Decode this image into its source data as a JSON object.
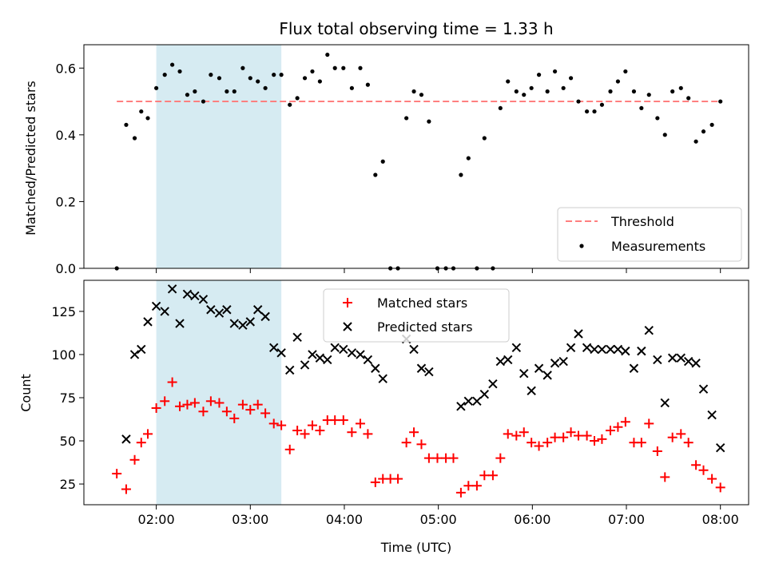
{
  "chart_data": {
    "type": "scatter",
    "title": "Flux total observing time = 1.33 h",
    "xlabel": "Time (UTC)",
    "x_tick_labels": [
      "02:00",
      "03:00",
      "04:00",
      "05:00",
      "06:00",
      "07:00",
      "08:00"
    ],
    "x_ticks_hours": [
      2,
      3,
      4,
      5,
      6,
      7,
      8
    ],
    "xlim_hours": [
      1.23,
      8.3
    ],
    "highlight_span_hours": [
      2.0,
      3.33
    ],
    "highlight_color": "#add8e6",
    "panels": [
      {
        "ylabel": "Matched/Predicted stars",
        "ylim": [
          0,
          0.67
        ],
        "y_ticks": [
          0.0,
          0.2,
          0.4,
          0.6
        ],
        "y_tick_labels": [
          "0.0",
          "0.2",
          "0.4",
          "0.6"
        ],
        "threshold": 0.5,
        "legend": [
          "Threshold",
          "Measurements"
        ],
        "legend_position": "lower-right",
        "threshold_color": "#ff7f7f",
        "series": [
          {
            "name": "Measurements",
            "color": "#000000",
            "x": [
              1.58,
              1.68,
              1.77,
              1.84,
              1.91,
              2.0,
              2.09,
              2.17,
              2.25,
              2.33,
              2.41,
              2.5,
              2.58,
              2.67,
              2.75,
              2.83,
              2.92,
              3.0,
              3.08,
              3.16,
              3.25,
              3.33,
              3.42,
              3.5,
              3.58,
              3.66,
              3.74,
              3.82,
              3.9,
              3.99,
              4.08,
              4.17,
              4.25,
              4.33,
              4.41,
              4.49,
              4.57,
              4.66,
              4.74,
              4.82,
              4.9,
              4.99,
              5.08,
              5.16,
              5.24,
              5.32,
              5.41,
              5.49,
              5.58,
              5.66,
              5.74,
              5.83,
              5.91,
              5.99,
              6.07,
              6.16,
              6.24,
              6.33,
              6.41,
              6.49,
              6.58,
              6.66,
              6.74,
              6.83,
              6.91,
              6.99,
              7.08,
              7.16,
              7.24,
              7.33,
              7.41,
              7.49,
              7.58,
              7.66,
              7.74,
              7.82,
              7.91,
              8.0
            ],
            "y": [
              0.0,
              0.43,
              0.39,
              0.47,
              0.45,
              0.54,
              0.58,
              0.61,
              0.59,
              0.52,
              0.53,
              0.5,
              0.58,
              0.57,
              0.53,
              0.53,
              0.6,
              0.57,
              0.56,
              0.54,
              0.58,
              0.58,
              0.49,
              0.51,
              0.57,
              0.59,
              0.56,
              0.64,
              0.6,
              0.6,
              0.54,
              0.6,
              0.55,
              0.28,
              0.32,
              0.0,
              0.0,
              0.45,
              0.53,
              0.52,
              0.44,
              0.0,
              0.0,
              0.0,
              0.28,
              0.33,
              0.0,
              0.39,
              0.0,
              0.48,
              0.56,
              0.53,
              0.52,
              0.54,
              0.58,
              0.53,
              0.59,
              0.54,
              0.57,
              0.5,
              0.47,
              0.47,
              0.49,
              0.53,
              0.56,
              0.59,
              0.53,
              0.48,
              0.52,
              0.45,
              0.4,
              0.53,
              0.54,
              0.51,
              0.38,
              0.41,
              0.43,
              0.5
            ]
          }
        ]
      },
      {
        "ylabel": "Count",
        "ylim": [
          13,
          143
        ],
        "y_ticks": [
          25,
          50,
          75,
          100,
          125
        ],
        "y_tick_labels": [
          "25",
          "50",
          "75",
          "100",
          "125"
        ],
        "legend": [
          "Matched stars",
          "Predicted stars"
        ],
        "legend_position": "top-center",
        "series": [
          {
            "name": "Matched stars",
            "marker": "plus",
            "color": "#ff0000",
            "x": [
              1.58,
              1.68,
              1.77,
              1.84,
              1.91,
              2.0,
              2.09,
              2.17,
              2.25,
              2.33,
              2.41,
              2.5,
              2.58,
              2.67,
              2.75,
              2.83,
              2.92,
              3.0,
              3.08,
              3.16,
              3.25,
              3.33,
              3.42,
              3.5,
              3.58,
              3.66,
              3.74,
              3.82,
              3.9,
              3.99,
              4.08,
              4.17,
              4.25,
              4.33,
              4.41,
              4.49,
              4.57,
              4.66,
              4.74,
              4.82,
              4.9,
              4.99,
              5.08,
              5.16,
              5.24,
              5.32,
              5.41,
              5.49,
              5.58,
              5.66,
              5.74,
              5.83,
              5.91,
              5.99,
              6.07,
              6.16,
              6.24,
              6.33,
              6.41,
              6.49,
              6.58,
              6.66,
              6.74,
              6.83,
              6.91,
              6.99,
              7.08,
              7.16,
              7.24,
              7.33,
              7.41,
              7.49,
              7.58,
              7.66,
              7.74,
              7.82,
              7.91,
              8.0
            ],
            "y": [
              31,
              22,
              39,
              49,
              54,
              69,
              73,
              84,
              70,
              71,
              72,
              67,
              73,
              72,
              67,
              63,
              71,
              68,
              71,
              66,
              60,
              59,
              45,
              56,
              54,
              59,
              56,
              62,
              62,
              62,
              55,
              60,
              54,
              26,
              28,
              28,
              28,
              49,
              55,
              48,
              40,
              40,
              40,
              40,
              20,
              24,
              24,
              30,
              30,
              40,
              54,
              53,
              55,
              49,
              47,
              49,
              52,
              52,
              55,
              53,
              53,
              50,
              51,
              56,
              58,
              61,
              49,
              49,
              60,
              44,
              29,
              52,
              54,
              49,
              36,
              33,
              28,
              23
            ]
          },
          {
            "name": "Predicted stars",
            "marker": "x",
            "color": "#000000",
            "x": [
              1.68,
              1.77,
              1.84,
              1.91,
              2.0,
              2.09,
              2.17,
              2.25,
              2.33,
              2.41,
              2.5,
              2.58,
              2.67,
              2.75,
              2.83,
              2.92,
              3.0,
              3.08,
              3.16,
              3.25,
              3.33,
              3.42,
              3.5,
              3.58,
              3.66,
              3.74,
              3.82,
              3.9,
              3.99,
              4.08,
              4.17,
              4.25,
              4.33,
              4.41,
              4.66,
              4.74,
              4.82,
              4.9,
              5.24,
              5.32,
              5.41,
              5.49,
              5.58,
              5.66,
              5.74,
              5.83,
              5.91,
              5.99,
              6.07,
              6.16,
              6.24,
              6.33,
              6.41,
              6.49,
              6.58,
              6.66,
              6.74,
              6.83,
              6.91,
              6.99,
              7.08,
              7.16,
              7.24,
              7.33,
              7.41,
              7.49,
              7.58,
              7.66,
              7.74,
              7.82,
              7.91,
              8.0
            ],
            "y": [
              51,
              100,
              103,
              119,
              128,
              125,
              138,
              118,
              135,
              134,
              132,
              126,
              124,
              126,
              118,
              117,
              119,
              126,
              122,
              104,
              101,
              91,
              110,
              94,
              100,
              98,
              97,
              104,
              103,
              101,
              100,
              97,
              92,
              86,
              109,
              103,
              92,
              90,
              70,
              73,
              73,
              77,
              83,
              96,
              97,
              104,
              89,
              79,
              92,
              88,
              95,
              96,
              104,
              112,
              104,
              103,
              103,
              103,
              103,
              102,
              92,
              102,
              114,
              97,
              72,
              98,
              98,
              96,
              95,
              80,
              65,
              46
            ]
          }
        ]
      }
    ]
  }
}
